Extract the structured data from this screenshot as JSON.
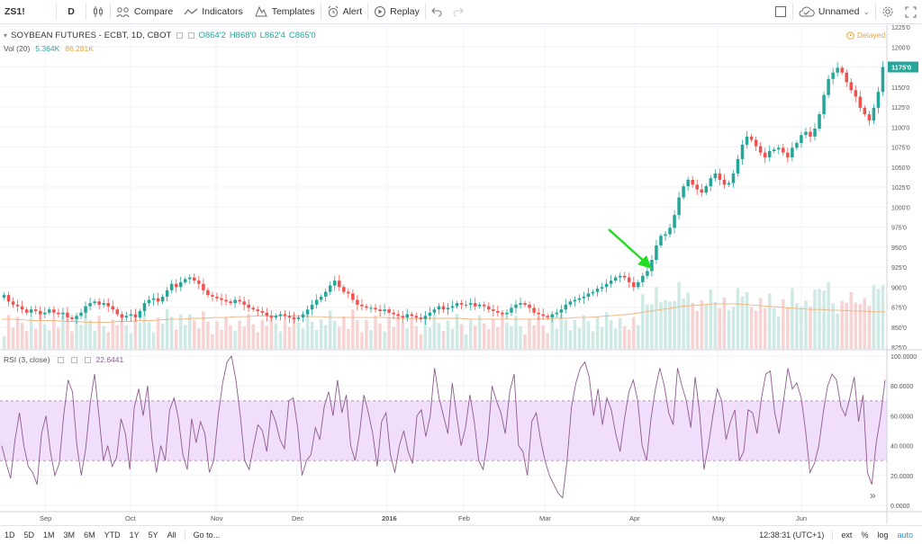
{
  "toolbar": {
    "symbol": "ZS1!",
    "interval": "D",
    "compare_label": "Compare",
    "indicators_label": "Indicators",
    "templates_label": "Templates",
    "alert_label": "Alert",
    "replay_label": "Replay",
    "layout_name": "Unnamed"
  },
  "legend": {
    "title": "SOYBEAN FUTURES - ECBT, 1D, CBOT",
    "open": "O864'2",
    "high": "H868'0",
    "low": "L862'4",
    "close": "C865'0",
    "vol_label": "Vol (20)",
    "vol_value1": "5.364K",
    "vol_value2": "86.281K",
    "rsi_label": "RSI (3, close)",
    "rsi_value": "22.6441",
    "delayed": "Delayed"
  },
  "price_axis": {
    "ticks": [
      "1225'0",
      "1200'0",
      "1175'0",
      "1150'0",
      "1125'0",
      "1100'0",
      "1075'0",
      "1050'0",
      "1025'0",
      "1000'0",
      "975'0",
      "950'0",
      "925'0",
      "900'0",
      "875'0",
      "850'0",
      "825'0"
    ],
    "last_price": "1175'0"
  },
  "rsi_axis": {
    "ticks": [
      "100.0000",
      "80.0000",
      "60.0000",
      "40.0000",
      "20.0000",
      "0.0000"
    ]
  },
  "time_axis": {
    "labels": [
      "Sep",
      "Oct",
      "Nov",
      "Dec",
      "2016",
      "Feb",
      "Mar",
      "Apr",
      "May",
      "Jun"
    ]
  },
  "bottombar": {
    "ranges": [
      "1D",
      "5D",
      "1M",
      "3M",
      "6M",
      "YTD",
      "1Y",
      "5Y",
      "All"
    ],
    "goto": "Go to...",
    "clock": "12:38:31 (UTC+1)",
    "ext": "ext",
    "pct": "%",
    "log": "log",
    "auto": "auto"
  },
  "colors": {
    "up": "#26a69a",
    "down": "#ef5350",
    "rsi_line": "#8e5a8e",
    "rsi_band": "#f0defa",
    "arrow": "#22dd22",
    "vol_ma": "#f0b27a"
  },
  "chart_data": [
    {
      "type": "candlestick",
      "title": "SOYBEAN FUTURES - ECBT, 1D, CBOT",
      "ylim": [
        825,
        1225
      ],
      "x_labels": [
        "Sep",
        "Oct",
        "Nov",
        "Dec",
        "2016",
        "Feb",
        "Mar",
        "Apr",
        "May",
        "Jun"
      ],
      "close": [
        890,
        882,
        878,
        876,
        872,
        868,
        872,
        870,
        866,
        868,
        872,
        868,
        866,
        868,
        862,
        860,
        864,
        868,
        876,
        880,
        882,
        878,
        880,
        876,
        872,
        866,
        862,
        864,
        866,
        862,
        870,
        880,
        884,
        886,
        882,
        888,
        896,
        904,
        900,
        906,
        910,
        912,
        908,
        904,
        896,
        890,
        888,
        886,
        884,
        882,
        880,
        884,
        882,
        878,
        874,
        872,
        870,
        868,
        864,
        862,
        864,
        866,
        864,
        862,
        860,
        862,
        866,
        872,
        878,
        884,
        888,
        894,
        902,
        908,
        900,
        894,
        892,
        884,
        878,
        876,
        874,
        874,
        872,
        870,
        872,
        868,
        866,
        864,
        862,
        866,
        864,
        862,
        860,
        864,
        868,
        872,
        876,
        872,
        874,
        876,
        880,
        878,
        878,
        880,
        876,
        878,
        876,
        872,
        870,
        868,
        866,
        868,
        874,
        878,
        880,
        878,
        874,
        868,
        866,
        864,
        862,
        866,
        868,
        872,
        878,
        882,
        884,
        886,
        888,
        892,
        894,
        898,
        900,
        904,
        908,
        912,
        914,
        912,
        906,
        900,
        906,
        914,
        920,
        934,
        952,
        964,
        966,
        974,
        990,
        1012,
        1026,
        1034,
        1028,
        1022,
        1018,
        1026,
        1036,
        1042,
        1034,
        1028,
        1030,
        1042,
        1060,
        1078,
        1088,
        1084,
        1076,
        1068,
        1062,
        1070,
        1072,
        1074,
        1068,
        1062,
        1074,
        1080,
        1090,
        1094,
        1088,
        1098,
        1116,
        1140,
        1160,
        1168,
        1174,
        1168,
        1156,
        1146,
        1138,
        1124,
        1116,
        1108,
        1124,
        1144,
        1175
      ],
      "volume_ma": [
        860,
        860,
        859,
        858,
        858,
        858,
        857,
        857,
        856,
        856,
        856,
        857,
        857,
        858,
        858,
        859,
        860,
        860,
        861,
        861,
        862,
        862,
        863,
        863,
        864,
        864,
        864,
        864,
        864,
        863,
        863,
        862,
        862,
        862,
        862,
        862,
        862,
        861,
        861,
        861,
        861,
        861,
        861,
        861,
        860,
        860,
        860,
        860,
        860,
        860,
        860,
        860,
        861,
        861,
        862,
        862,
        863,
        864,
        865,
        866,
        868,
        870,
        872,
        874,
        876,
        877,
        878,
        879,
        879,
        879,
        878,
        877,
        876,
        875,
        874,
        873,
        872,
        872,
        871,
        871,
        870,
        870,
        869,
        869
      ],
      "rsi_bands": [
        30,
        70
      ],
      "rsi": [
        40,
        28,
        18,
        44,
        62,
        40,
        26,
        22,
        14,
        48,
        60,
        36,
        20,
        28,
        60,
        84,
        76,
        40,
        20,
        38,
        68,
        88,
        60,
        30,
        40,
        26,
        32,
        58,
        48,
        24,
        66,
        78,
        60,
        80,
        44,
        22,
        40,
        30,
        64,
        72,
        58,
        34,
        24,
        58,
        42,
        56,
        48,
        22,
        30,
        60,
        82,
        96,
        100,
        84,
        60,
        30,
        24,
        40,
        54,
        50,
        36,
        64,
        56,
        44,
        38,
        70,
        72,
        52,
        20,
        30,
        34,
        52,
        44,
        66,
        76,
        60,
        84,
        62,
        74,
        40,
        30,
        48,
        74,
        62,
        48,
        26,
        56,
        62,
        34,
        22,
        40,
        50,
        36,
        28,
        60,
        64,
        46,
        60,
        92,
        72,
        60,
        48,
        82,
        60,
        40,
        52,
        74,
        56,
        30,
        24,
        44,
        80,
        70,
        62,
        48,
        76,
        88,
        40,
        36,
        20,
        56,
        62,
        44,
        30,
        20,
        14,
        8,
        5,
        30,
        66,
        82,
        92,
        96,
        86,
        60,
        78,
        54,
        72,
        64,
        48,
        36,
        58,
        76,
        84,
        70,
        40,
        30,
        58,
        78,
        92,
        80,
        62,
        54,
        92,
        80,
        70,
        52,
        86,
        62,
        24,
        40,
        60,
        78,
        70,
        44,
        56,
        64,
        30,
        36,
        64,
        62,
        48,
        72,
        88,
        90,
        62,
        48,
        70,
        92,
        78,
        82,
        72,
        50,
        22,
        28,
        40,
        62,
        80,
        88,
        84,
        66,
        60,
        72,
        86,
        56,
        74,
        22,
        14,
        42,
        60,
        84
      ]
    }
  ]
}
